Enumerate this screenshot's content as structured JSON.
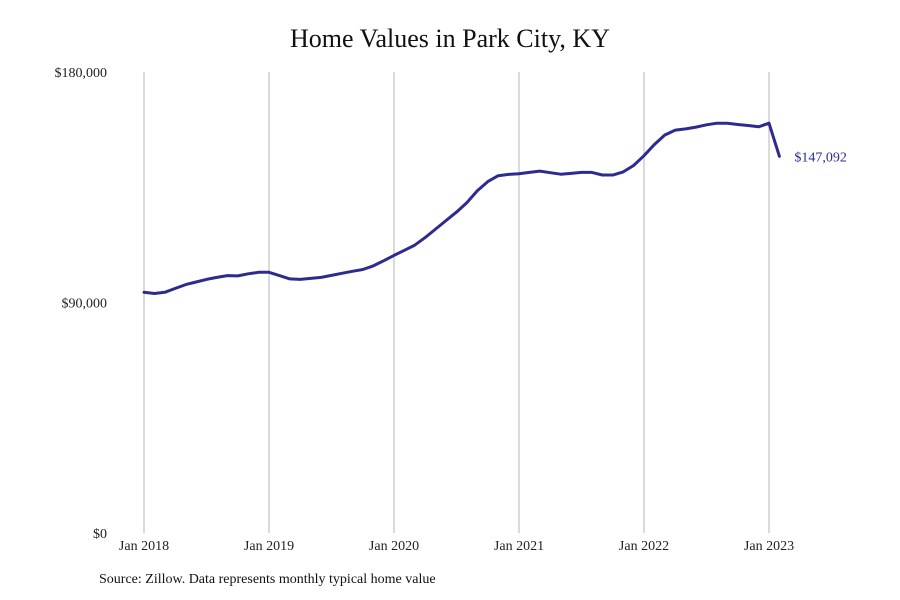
{
  "chart_data": {
    "type": "line",
    "title": "Home Values in Park City, KY",
    "source": "Source: Zillow. Data represents monthly typical home value",
    "line_color": "#2e2b8f",
    "grid_color": "#b5b5b5",
    "grid": "vertical",
    "ylim": [
      0,
      180000
    ],
    "y_ticks": [
      {
        "value": 0,
        "label": "$0"
      },
      {
        "value": 90000,
        "label": "$90,000"
      },
      {
        "value": 180000,
        "label": "$180,000"
      }
    ],
    "x_ticks": [
      {
        "value": "2018-01",
        "label": "Jan 2018"
      },
      {
        "value": "2019-01",
        "label": "Jan 2019"
      },
      {
        "value": "2020-01",
        "label": "Jan 2020"
      },
      {
        "value": "2021-01",
        "label": "Jan 2021"
      },
      {
        "value": "2022-01",
        "label": "Jan 2022"
      },
      {
        "value": "2023-01",
        "label": "Jan 2023"
      }
    ],
    "end_label": "$147,092",
    "series": [
      {
        "x": [
          "2018-01",
          "2018-02",
          "2018-03",
          "2018-04",
          "2018-05",
          "2018-06",
          "2018-07",
          "2018-08",
          "2018-09",
          "2018-10",
          "2018-11",
          "2018-12",
          "2019-01",
          "2019-02",
          "2019-03",
          "2019-04",
          "2019-05",
          "2019-06",
          "2019-07",
          "2019-08",
          "2019-09",
          "2019-10",
          "2019-11",
          "2019-12",
          "2020-01",
          "2020-02",
          "2020-03",
          "2020-04",
          "2020-05",
          "2020-06",
          "2020-07",
          "2020-08",
          "2020-09",
          "2020-10",
          "2020-11",
          "2020-12",
          "2021-01",
          "2021-02",
          "2021-03",
          "2021-04",
          "2021-05",
          "2021-06",
          "2021-07",
          "2021-08",
          "2021-09",
          "2021-10",
          "2021-11",
          "2021-12",
          "2022-01",
          "2022-02",
          "2022-03",
          "2022-04",
          "2022-05",
          "2022-06",
          "2022-07",
          "2022-08",
          "2022-09",
          "2022-10",
          "2022-11",
          "2022-12",
          "2023-01",
          "2023-02"
        ],
        "values": [
          94000,
          93500,
          94000,
          95500,
          97000,
          98000,
          99000,
          99800,
          100500,
          100400,
          101200,
          101800,
          101800,
          100500,
          99200,
          99000,
          99400,
          99800,
          100600,
          101400,
          102200,
          102900,
          104300,
          106300,
          108400,
          110400,
          112400,
          115400,
          118700,
          122000,
          125300,
          129000,
          133600,
          137200,
          139500,
          140000,
          140300,
          140800,
          141300,
          140700,
          140100,
          140400,
          140800,
          140800,
          139800,
          139800,
          141000,
          143500,
          147300,
          151700,
          155400,
          157300,
          157800,
          158500,
          159400,
          160000,
          160000,
          159500,
          159100,
          158600,
          160000,
          147092
        ]
      }
    ]
  }
}
